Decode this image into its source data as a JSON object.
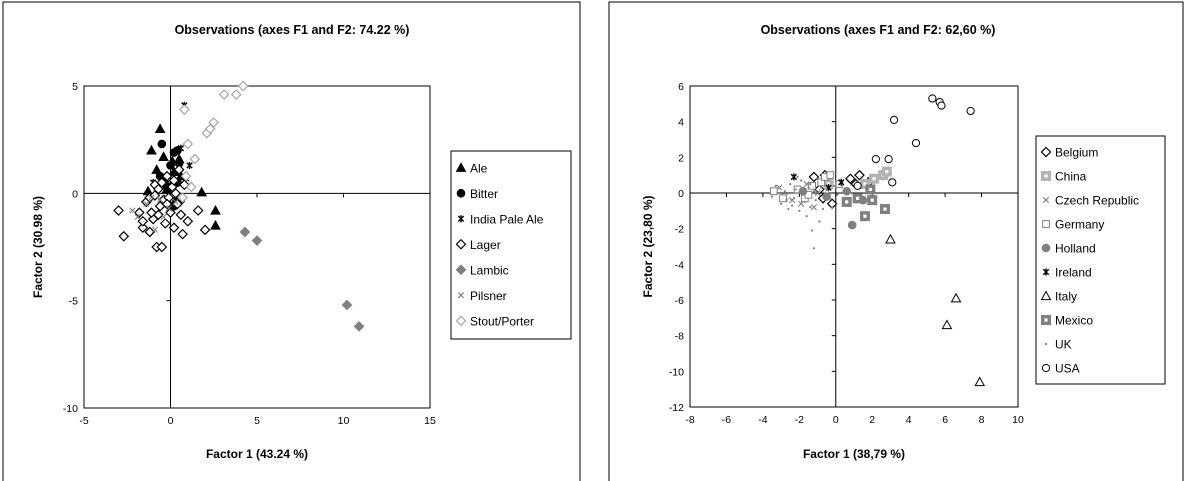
{
  "chart_data": [
    {
      "type": "scatter",
      "title": "Observations (axes F1 and F2: 74.22 %)",
      "xlabel": "Factor 1 (43.24 %)",
      "ylabel": "Factor 2 (30.98 %)",
      "xlim": [
        -5,
        15
      ],
      "ylim": [
        -10,
        5
      ],
      "xticks": [
        -5,
        0,
        5,
        10,
        15
      ],
      "yticks": [
        -10,
        -5,
        0,
        5
      ],
      "grid": false,
      "legend_position": "right",
      "series": [
        {
          "name": "Ale",
          "marker": "triangle-filled",
          "color": "#000000",
          "points": [
            [
              -0.6,
              3.0
            ],
            [
              -1.1,
              2.0
            ],
            [
              -0.4,
              1.7
            ],
            [
              0.1,
              1.5
            ],
            [
              0.5,
              1.6
            ],
            [
              -0.8,
              1.1
            ],
            [
              0.2,
              1.0
            ],
            [
              0.6,
              0.8
            ],
            [
              -0.3,
              0.6
            ],
            [
              1.8,
              0.05
            ],
            [
              -1.3,
              0.1
            ],
            [
              -0.2,
              0.2
            ],
            [
              2.6,
              -0.8
            ],
            [
              2.6,
              -1.5
            ],
            [
              0.3,
              -0.3
            ]
          ]
        },
        {
          "name": "Bitter",
          "marker": "circle-filled",
          "color": "#000000",
          "points": [
            [
              -0.5,
              2.3
            ],
            [
              0.2,
              1.9
            ],
            [
              0.4,
              2.0
            ],
            [
              0.0,
              1.3
            ],
            [
              0.5,
              1.4
            ],
            [
              -0.6,
              0.8
            ],
            [
              0.4,
              0.5
            ],
            [
              -0.2,
              0.3
            ],
            [
              0.6,
              -0.3
            ],
            [
              0.2,
              -0.6
            ]
          ]
        },
        {
          "name": "India Pale Ale",
          "marker": "star",
          "color": "#000000",
          "points": [
            [
              0.8,
              4.1
            ],
            [
              0.6,
              2.1
            ],
            [
              1.1,
              1.3
            ],
            [
              0.4,
              1.0
            ],
            [
              0.9,
              0.7
            ],
            [
              -1.0,
              0.5
            ]
          ]
        },
        {
          "name": "Lager",
          "marker": "diamond-open",
          "color": "#000000",
          "points": [
            [
              -3.0,
              -0.8
            ],
            [
              -2.7,
              -2.0
            ],
            [
              -1.8,
              -0.9
            ],
            [
              -1.6,
              -1.6
            ],
            [
              -1.4,
              -0.4
            ],
            [
              -1.2,
              -0.2
            ],
            [
              -1.0,
              -1.2
            ],
            [
              -0.9,
              0.4
            ],
            [
              -0.8,
              -2.5
            ],
            [
              -0.7,
              -1.0
            ],
            [
              -0.6,
              -0.6
            ],
            [
              -0.5,
              -2.5
            ],
            [
              -0.4,
              -0.3
            ],
            [
              -0.3,
              -1.4
            ],
            [
              -0.2,
              0.8
            ],
            [
              -0.1,
              -0.2
            ],
            [
              0.0,
              -0.9
            ],
            [
              0.1,
              0.3
            ],
            [
              0.2,
              -1.6
            ],
            [
              0.3,
              0.0
            ],
            [
              0.4,
              -0.5
            ],
            [
              0.5,
              1.1
            ],
            [
              0.6,
              -1.0
            ],
            [
              0.7,
              -1.9
            ],
            [
              0.8,
              0.4
            ],
            [
              1.0,
              -1.3
            ],
            [
              1.6,
              -0.8
            ],
            [
              2.0,
              -1.7
            ],
            [
              -1.2,
              -1.8
            ],
            [
              -0.9,
              -0.1
            ],
            [
              -1.6,
              -1.3
            ],
            [
              -0.5,
              0.5
            ],
            [
              0.2,
              0.6
            ],
            [
              -0.7,
              0.2
            ],
            [
              -1.1,
              -0.9
            ],
            [
              -0.2,
              -0.5
            ]
          ]
        },
        {
          "name": "Lambic",
          "marker": "diamond-filled",
          "color": "#808080",
          "points": [
            [
              4.3,
              -1.8
            ],
            [
              5.0,
              -2.2
            ],
            [
              10.2,
              -5.2
            ],
            [
              10.9,
              -6.2
            ]
          ]
        },
        {
          "name": "Pilsner",
          "marker": "x",
          "color": "#808080",
          "points": [
            [
              -2.2,
              -0.8
            ],
            [
              -1.9,
              -1.1
            ],
            [
              -1.4,
              -0.5
            ],
            [
              -1.1,
              -0.2
            ],
            [
              -0.9,
              -1.7
            ],
            [
              -0.6,
              -0.3
            ],
            [
              -0.4,
              -1.1
            ],
            [
              -0.1,
              -0.7
            ],
            [
              0.3,
              -0.4
            ]
          ]
        },
        {
          "name": "Stout/Porter",
          "marker": "diamond-open",
          "color": "#a6a6a6",
          "points": [
            [
              0.8,
              3.9
            ],
            [
              1.0,
              2.3
            ],
            [
              2.1,
              2.8
            ],
            [
              2.3,
              3.0
            ],
            [
              2.5,
              3.3
            ],
            [
              3.1,
              4.6
            ],
            [
              3.8,
              4.6
            ],
            [
              4.2,
              5.0
            ],
            [
              0.9,
              0.8
            ],
            [
              1.2,
              0.3
            ],
            [
              0.7,
              -0.2
            ],
            [
              1.4,
              1.6
            ]
          ]
        }
      ]
    },
    {
      "type": "scatter",
      "title": "Observations (axes F1 and F2: 62,60 %)",
      "xlabel": "Factor 1 (38,79 %)",
      "ylabel": "Factor 2 (23,80 %)",
      "xlim": [
        -8,
        10
      ],
      "ylim": [
        -12,
        6
      ],
      "xticks": [
        -8,
        -6,
        -4,
        -2,
        0,
        2,
        4,
        6,
        8,
        10
      ],
      "yticks": [
        -12,
        -10,
        -8,
        -6,
        -4,
        -2,
        0,
        2,
        4,
        6
      ],
      "grid": false,
      "legend_position": "right",
      "series": [
        {
          "name": "Belgium",
          "marker": "diamond-open",
          "color": "#000000",
          "points": [
            [
              -1.2,
              0.9
            ],
            [
              -0.6,
              1.0
            ],
            [
              -0.9,
              0.2
            ],
            [
              -0.4,
              0.6
            ],
            [
              -0.7,
              -0.3
            ],
            [
              -0.2,
              -0.6
            ],
            [
              0.8,
              0.8
            ],
            [
              1.1,
              0.5
            ],
            [
              1.3,
              1.0
            ],
            [
              1.8,
              0.6
            ]
          ]
        },
        {
          "name": "China",
          "marker": "square-filled-hatch",
          "color": "#b3b3b3",
          "points": [
            [
              1.6,
              0.5
            ],
            [
              2.1,
              0.8
            ],
            [
              2.6,
              1.0
            ],
            [
              2.8,
              1.2
            ],
            [
              -0.4,
              0.5
            ]
          ]
        },
        {
          "name": "Czech Republic",
          "marker": "x",
          "color": "#808080",
          "points": [
            [
              -3.1,
              0.3
            ],
            [
              -2.8,
              -0.2
            ],
            [
              -2.4,
              -0.4
            ],
            [
              -1.9,
              -0.6
            ],
            [
              -1.6,
              0.5
            ],
            [
              -1.2,
              -0.8
            ],
            [
              -1.0,
              0.0
            ]
          ]
        },
        {
          "name": "Germany",
          "marker": "square-open",
          "color": "#808080",
          "points": [
            [
              -3.4,
              0.1
            ],
            [
              -2.9,
              -0.3
            ],
            [
              -2.1,
              0.2
            ],
            [
              -1.7,
              -0.3
            ],
            [
              -1.3,
              0.4
            ],
            [
              -0.8,
              0.6
            ],
            [
              -0.6,
              0.9
            ],
            [
              -0.3,
              1.0
            ],
            [
              -1.5,
              -0.1
            ],
            [
              0.2,
              0.5
            ]
          ]
        },
        {
          "name": "Holland",
          "marker": "circle-filled",
          "color": "#808080",
          "points": [
            [
              -1.8,
              0.1
            ],
            [
              -0.5,
              -0.2
            ],
            [
              0.6,
              0.1
            ],
            [
              1.5,
              -0.4
            ],
            [
              0.9,
              -1.8
            ]
          ]
        },
        {
          "name": "Ireland",
          "marker": "star",
          "color": "#000000",
          "points": [
            [
              -2.3,
              0.9
            ],
            [
              -0.4,
              0.3
            ],
            [
              0.3,
              0.6
            ]
          ]
        },
        {
          "name": "Italy",
          "marker": "triangle-open",
          "color": "#000000",
          "points": [
            [
              3.0,
              -2.6
            ],
            [
              6.6,
              -5.9
            ],
            [
              6.1,
              -7.4
            ],
            [
              7.9,
              -10.6
            ]
          ]
        },
        {
          "name": "Mexico",
          "marker": "square-filled-hatch",
          "color": "#808080",
          "points": [
            [
              0.6,
              -0.5
            ],
            [
              1.2,
              -0.3
            ],
            [
              1.6,
              -1.3
            ],
            [
              2.0,
              -0.4
            ],
            [
              2.7,
              -0.9
            ],
            [
              1.9,
              0.2
            ]
          ]
        },
        {
          "name": "UK",
          "marker": "dot",
          "color": "#808080",
          "points": [
            [
              -3.5,
              -0.2
            ],
            [
              -3.3,
              0.4
            ],
            [
              -3.0,
              -0.6
            ],
            [
              -2.8,
              0.1
            ],
            [
              -2.6,
              -0.9
            ],
            [
              -2.5,
              0.5
            ],
            [
              -2.3,
              -0.3
            ],
            [
              -2.2,
              0.2
            ],
            [
              -2.0,
              -1.0
            ],
            [
              -1.9,
              0.7
            ],
            [
              -1.7,
              -0.5
            ],
            [
              -1.6,
              -1.3
            ],
            [
              -1.5,
              0.3
            ],
            [
              -1.4,
              -0.8
            ],
            [
              -1.3,
              -2.1
            ],
            [
              -1.2,
              0.1
            ],
            [
              -1.1,
              -0.4
            ],
            [
              -1.0,
              0.8
            ],
            [
              -0.9,
              -1.6
            ],
            [
              -0.8,
              0.3
            ],
            [
              -0.7,
              -0.9
            ],
            [
              -0.5,
              0.2
            ],
            [
              -0.3,
              -0.3
            ],
            [
              -0.1,
              0.4
            ],
            [
              0.1,
              -0.1
            ],
            [
              -2.7,
              -0.4
            ],
            [
              -2.1,
              0.9
            ],
            [
              -1.8,
              -0.1
            ],
            [
              -1.2,
              -3.1
            ],
            [
              -0.6,
              -0.1
            ],
            [
              -2.4,
              -0.7
            ],
            [
              -3.2,
              0.0
            ],
            [
              -1.4,
              0.5
            ],
            [
              -0.2,
              -0.8
            ]
          ]
        },
        {
          "name": "USA",
          "marker": "circle-open",
          "color": "#000000",
          "points": [
            [
              5.3,
              5.3
            ],
            [
              5.7,
              5.1
            ],
            [
              5.8,
              4.9
            ],
            [
              7.4,
              4.6
            ],
            [
              3.2,
              4.1
            ],
            [
              4.4,
              2.8
            ],
            [
              2.2,
              1.9
            ],
            [
              2.9,
              1.9
            ],
            [
              3.1,
              0.6
            ],
            [
              1.2,
              0.4
            ]
          ]
        }
      ]
    }
  ]
}
